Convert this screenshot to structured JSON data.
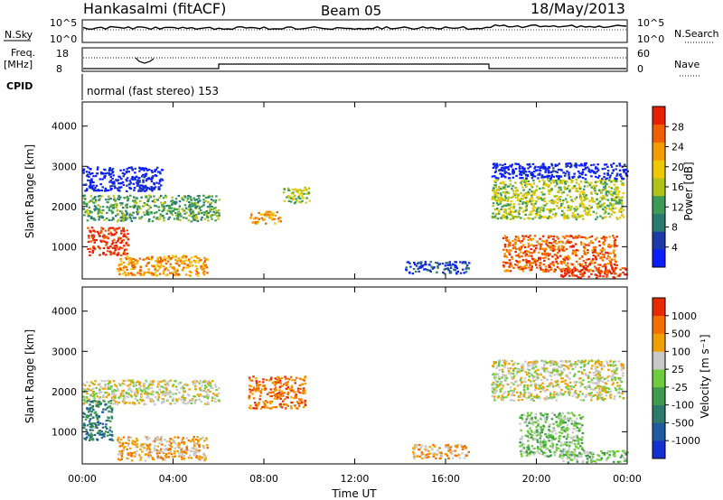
{
  "header": {
    "station": "Hankasalmi (fitACF)",
    "beam": "Beam 05",
    "date": "18/May/2013"
  },
  "panels": {
    "nsky_label": "N.Sky",
    "nsearch_label": "N.Search",
    "freq_label_1": "Freq.",
    "freq_label_2": "[MHz]",
    "nave_label": "Nave",
    "cpid_label": "CPID",
    "cpid_value": "normal (fast stereo) 153",
    "nsky_ticks": [
      "10^5",
      "10^0"
    ],
    "nsearch_ticks": [
      "10^5",
      "10^0"
    ],
    "freq_ticks": [
      "18",
      "8"
    ],
    "nave_ticks": [
      "60",
      "0"
    ]
  },
  "colorbars": {
    "power": {
      "label": "Power [dB]",
      "ticks": [
        "28",
        "24",
        "20",
        "16",
        "12",
        "8",
        "4"
      ],
      "colors": [
        "#0a1eff",
        "#1c3aa8",
        "#2a7a74",
        "#3c9c55",
        "#b0c418",
        "#f0c800",
        "#f59a00",
        "#f06000",
        "#e82000"
      ]
    },
    "velocity": {
      "label": "Velocity [m s⁻¹]",
      "ticks": [
        "1000",
        "500",
        "100",
        "25",
        "-25",
        "-100",
        "-500",
        "-1000"
      ],
      "colors": [
        "#1430d0",
        "#1d5aa0",
        "#2b7a6a",
        "#3f9a4e",
        "#6ccc3c",
        "#c8c8c8",
        "#f0a000",
        "#f56e00",
        "#e82a00"
      ]
    }
  },
  "chart_data": [
    {
      "type": "heatmap",
      "name": "power",
      "ylabel": "Slant Range [km]",
      "xlim": [
        0,
        24
      ],
      "ylim": [
        200,
        4600
      ],
      "yticks": [
        1000,
        2000,
        3000,
        4000
      ],
      "grid": false,
      "regions": [
        {
          "t0": 0.0,
          "t1": 6.0,
          "r0": 1650,
          "r1": 2300,
          "level": 3
        },
        {
          "t0": 0.2,
          "t1": 2.0,
          "r0": 800,
          "r1": 1500,
          "level": 8
        },
        {
          "t0": 0.0,
          "t1": 3.5,
          "r0": 2400,
          "r1": 3000,
          "level": 0
        },
        {
          "t0": 1.5,
          "t1": 5.5,
          "r0": 300,
          "r1": 800,
          "level": 6
        },
        {
          "t0": 7.3,
          "t1": 8.7,
          "r0": 1600,
          "r1": 1900,
          "level": 6
        },
        {
          "t0": 8.8,
          "t1": 10.0,
          "r0": 2100,
          "r1": 2500,
          "level": 4
        },
        {
          "t0": 14.2,
          "t1": 17.0,
          "r0": 350,
          "r1": 650,
          "level": 1
        },
        {
          "t0": 18.0,
          "t1": 23.8,
          "r0": 1700,
          "r1": 2700,
          "level": 4
        },
        {
          "t0": 18.0,
          "t1": 24.0,
          "r0": 2700,
          "r1": 3100,
          "level": 0
        },
        {
          "t0": 18.5,
          "t1": 23.5,
          "r0": 400,
          "r1": 1300,
          "level": 7
        },
        {
          "t0": 21.0,
          "t1": 24.0,
          "r0": 250,
          "r1": 500,
          "level": 8
        }
      ]
    },
    {
      "type": "heatmap",
      "name": "velocity",
      "xlabel": "Time UT",
      "ylabel": "Slant Range [km]",
      "xlim": [
        0,
        24
      ],
      "ylim": [
        200,
        4600
      ],
      "xticks": [
        "00:00",
        "04:00",
        "08:00",
        "12:00",
        "16:00",
        "20:00",
        "00:00"
      ],
      "yticks": [
        1000,
        2000,
        3000,
        4000
      ],
      "grid": false,
      "regions": [
        {
          "t0": 0.0,
          "t1": 6.0,
          "r0": 1700,
          "r1": 2300,
          "level": 5
        },
        {
          "t0": 0.0,
          "t1": 1.3,
          "r0": 800,
          "r1": 1800,
          "level": 2
        },
        {
          "t0": 1.5,
          "t1": 5.5,
          "r0": 300,
          "r1": 900,
          "level": 6
        },
        {
          "t0": 7.3,
          "t1": 9.8,
          "r0": 1600,
          "r1": 2400,
          "level": 7
        },
        {
          "t0": 18.0,
          "t1": 23.8,
          "r0": 1800,
          "r1": 2800,
          "level": 5
        },
        {
          "t0": 19.2,
          "t1": 22.0,
          "r0": 400,
          "r1": 1500,
          "level": 4
        },
        {
          "t0": 21.0,
          "t1": 24.0,
          "r0": 250,
          "r1": 550,
          "level": 4
        },
        {
          "t0": 14.5,
          "t1": 17.0,
          "r0": 350,
          "r1": 700,
          "level": 6
        }
      ]
    }
  ]
}
